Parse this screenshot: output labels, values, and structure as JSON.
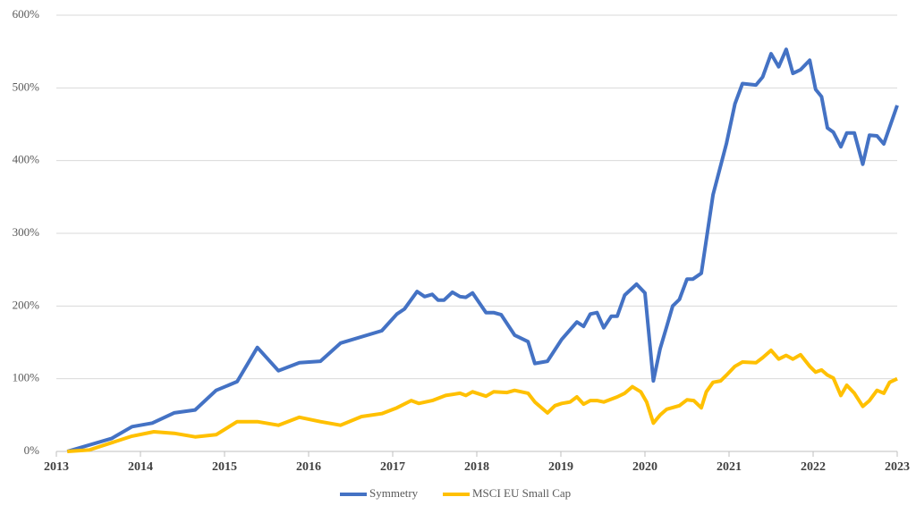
{
  "chart_data": {
    "type": "line",
    "xlim": [
      2013,
      2023
    ],
    "xticks": [
      2013,
      2014,
      2015,
      2016,
      2017,
      2018,
      2019,
      2020,
      2021,
      2022,
      2023
    ],
    "ylim": [
      0,
      600
    ],
    "yticks": [
      {
        "value": 0,
        "label": "0%"
      },
      {
        "value": 100,
        "label": "100%"
      },
      {
        "value": 200,
        "label": "200%"
      },
      {
        "value": 300,
        "label": "300%"
      },
      {
        "value": 400,
        "label": "400%"
      },
      {
        "value": 500,
        "label": "500%"
      },
      {
        "value": 600,
        "label": "600%"
      }
    ],
    "grid": true,
    "legend": "bottom",
    "series": [
      {
        "name": "Symmetry",
        "color": "#4472c4",
        "x": [
          2013.13,
          2013.66,
          2013.9,
          2014.14,
          2014.4,
          2014.65,
          2014.9,
          2015.15,
          2015.39,
          2015.64,
          2015.89,
          2016.14,
          2016.38,
          2016.87,
          2017.05,
          2017.14,
          2017.29,
          2017.38,
          2017.47,
          2017.54,
          2017.61,
          2017.71,
          2017.8,
          2017.87,
          2017.95,
          2018.11,
          2018.2,
          2018.29,
          2018.45,
          2018.61,
          2018.69,
          2018.84,
          2019.01,
          2019.19,
          2019.27,
          2019.35,
          2019.43,
          2019.51,
          2019.6,
          2019.67,
          2019.76,
          2019.9,
          2020.0,
          2020.1,
          2020.18,
          2020.26,
          2020.33,
          2020.41,
          2020.5,
          2020.57,
          2020.67,
          2020.81,
          2020.97,
          2021.07,
          2021.16,
          2021.32,
          2021.4,
          2021.5,
          2021.59,
          2021.68,
          2021.76,
          2021.85,
          2021.96,
          2022.03,
          2022.1,
          2022.17,
          2022.24,
          2022.33,
          2022.4,
          2022.49,
          2022.59,
          2022.67,
          2022.76,
          2022.84,
          2023.0
        ],
        "values": [
          0,
          18,
          34,
          39,
          53,
          57,
          84,
          96,
          143,
          111,
          122,
          124,
          149,
          166,
          189,
          196,
          220,
          213,
          216,
          208,
          208,
          219,
          213,
          212,
          218,
          191,
          191,
          188,
          160,
          151,
          121,
          124,
          154,
          178,
          172,
          189,
          191,
          170,
          186,
          186,
          215,
          230,
          218,
          97,
          141,
          172,
          200,
          209,
          237,
          237,
          245,
          353,
          424,
          478,
          506,
          504,
          515,
          547,
          529,
          553,
          520,
          525,
          538,
          498,
          488,
          445,
          439,
          419,
          438,
          438,
          395,
          435,
          434,
          423,
          476
        ]
      },
      {
        "name": "MSCI EU Small Cap",
        "color": "#ffc000",
        "x": [
          2013.13,
          2013.39,
          2013.66,
          2013.9,
          2014.16,
          2014.4,
          2014.65,
          2014.9,
          2015.15,
          2015.39,
          2015.64,
          2015.89,
          2016.14,
          2016.38,
          2016.63,
          2016.87,
          2017.05,
          2017.22,
          2017.31,
          2017.47,
          2017.63,
          2017.8,
          2017.87,
          2017.95,
          2018.11,
          2018.2,
          2018.36,
          2018.45,
          2018.61,
          2018.69,
          2018.84,
          2018.93,
          2019.01,
          2019.11,
          2019.19,
          2019.27,
          2019.35,
          2019.43,
          2019.51,
          2019.67,
          2019.76,
          2019.85,
          2019.95,
          2020.02,
          2020.1,
          2020.18,
          2020.26,
          2020.41,
          2020.5,
          2020.58,
          2020.67,
          2020.73,
          2020.81,
          2020.9,
          2020.97,
          2021.07,
          2021.16,
          2021.32,
          2021.4,
          2021.5,
          2021.59,
          2021.68,
          2021.76,
          2021.85,
          2021.96,
          2022.03,
          2022.1,
          2022.17,
          2022.24,
          2022.33,
          2022.4,
          2022.49,
          2022.59,
          2022.67,
          2022.76,
          2022.84,
          2022.91,
          2023.0
        ],
        "values": [
          0,
          2,
          12,
          21,
          27,
          25,
          20,
          23,
          41,
          41,
          36,
          47,
          41,
          36,
          48,
          52,
          60,
          70,
          66,
          70,
          77,
          80,
          77,
          82,
          76,
          82,
          81,
          84,
          80,
          68,
          53,
          63,
          66,
          68,
          75,
          65,
          70,
          70,
          68,
          75,
          80,
          89,
          82,
          68,
          39,
          50,
          58,
          63,
          71,
          70,
          60,
          82,
          95,
          97,
          105,
          117,
          123,
          122,
          129,
          139,
          127,
          132,
          127,
          133,
          117,
          109,
          112,
          105,
          101,
          77,
          91,
          80,
          62,
          70,
          84,
          80,
          95,
          100
        ]
      }
    ]
  }
}
